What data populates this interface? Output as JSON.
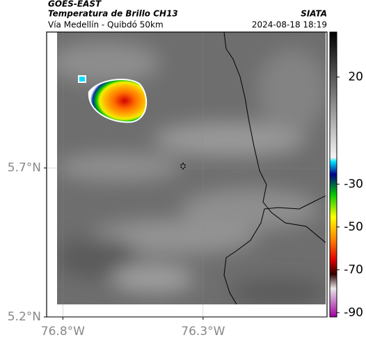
{
  "header": {
    "satellite": "GOES-EAST",
    "product": "Temperatura de Brillo CH13",
    "region": "Vía Medellín - Quibdó 50km",
    "source": "SIATA",
    "datetime": "2024-08-18 18:19"
  },
  "map": {
    "xlim": [
      -76.858,
      -75.858
    ],
    "ylim": [
      5.2,
      6.156
    ],
    "xticks": [
      {
        "value": -76.8,
        "label": "76.8°W"
      },
      {
        "value": -76.3,
        "label": "76.3°W"
      }
    ],
    "yticks": [
      {
        "value": 5.7,
        "label": "5.7°N"
      },
      {
        "value": 5.2,
        "label": "5.2°N"
      }
    ],
    "grid": true
  },
  "colorbar": {
    "lim": [
      -92,
      41
    ],
    "ticks": [
      20,
      -30,
      -50,
      -70,
      -90
    ]
  }
}
